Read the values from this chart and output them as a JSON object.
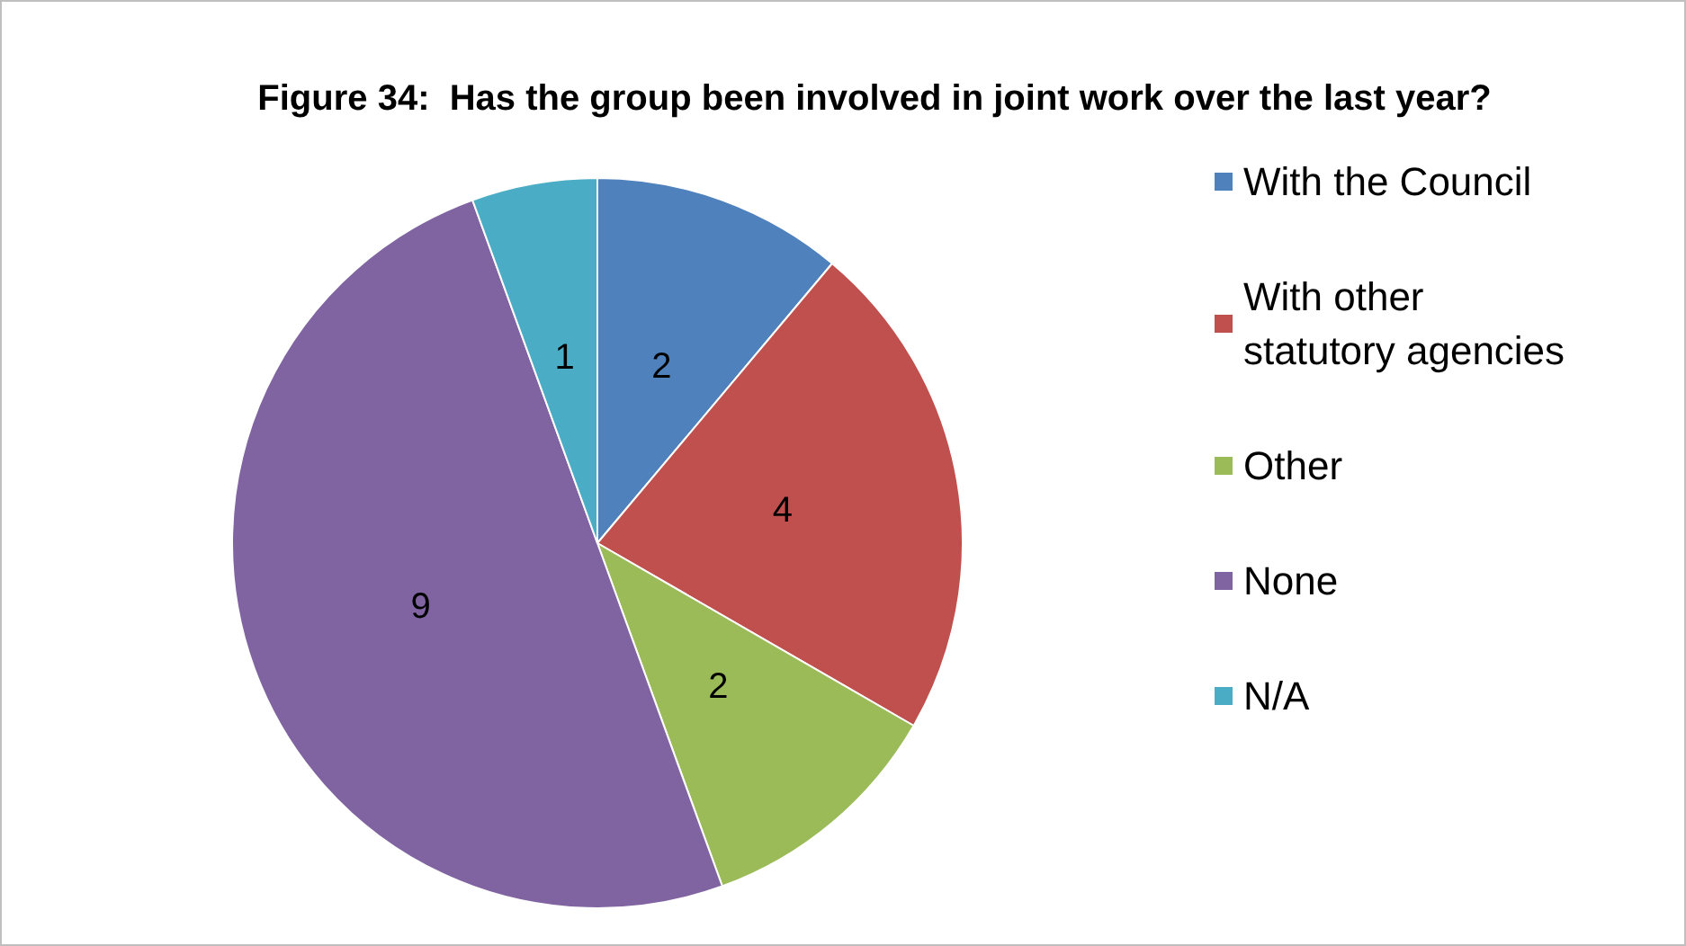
{
  "chart_data": {
    "type": "pie",
    "title": "Figure 34:  Has the group been involved in joint work over the last year?",
    "categories": [
      "With the Council",
      "With other statutory agencies",
      "Other",
      "None",
      "N/A"
    ],
    "values": [
      2,
      4,
      2,
      9,
      1
    ],
    "colors": [
      "#4f81bd",
      "#c0504d",
      "#9bbb59",
      "#8064a2",
      "#4bacc6"
    ],
    "data_labels": true,
    "legend": "right"
  }
}
